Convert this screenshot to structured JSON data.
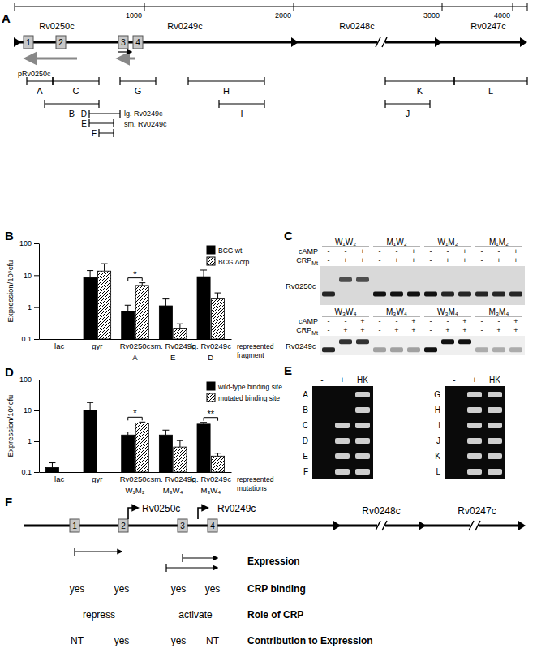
{
  "diagram_a": {
    "label": "A",
    "ruler_ticks": [
      1000,
      2000,
      3000,
      4000
    ],
    "genes": [
      "Rv0250c",
      "Rv0249c",
      "Rv0248c",
      "Rv0247c"
    ],
    "sites": [
      "1",
      "2",
      "3",
      "4"
    ],
    "plasmid": "pRv0250c",
    "fragments": [
      "A",
      "B",
      "C",
      "D",
      "E",
      "F",
      "G",
      "H",
      "I",
      "J",
      "K",
      "L"
    ],
    "fragment_names": [
      "lg. Rv0249c",
      "sm. Rv0249c"
    ]
  },
  "chart_data": [
    {
      "type": "bar",
      "label": "B",
      "y_label": "Expression/10⁶cfu",
      "categories": [
        "lac",
        "gyr",
        "Rv0250c",
        "sm. Rv0249c",
        "lg. Rv0249c"
      ],
      "annotation_labels": [
        null,
        null,
        "A",
        "E",
        "D"
      ],
      "annotation_title": "represented fragment",
      "series": [
        {
          "name": "BCG wt",
          "color": "#000000",
          "values": [
            null,
            8.5,
            0.75,
            1.1,
            9
          ],
          "errors": [
            null,
            5.5,
            0.4,
            0.7,
            5.5
          ]
        },
        {
          "name": "BCG Δcrp",
          "color": "#000000",
          "values": [
            null,
            13.5,
            4.8,
            0.22,
            1.8
          ],
          "errors": [
            null,
            9.5,
            1,
            0.08,
            1
          ]
        }
      ],
      "ylim": [
        0.1,
        100
      ],
      "yticks": [
        0.1,
        1,
        10,
        100
      ],
      "log": "y",
      "legend": "upper right",
      "significance": [
        {
          "category": 2,
          "label": "*"
        }
      ]
    },
    {
      "type": "bar",
      "label": "D",
      "y_label": "Expression/10⁶cfu",
      "categories": [
        "lac",
        "gyr",
        "Rv0250c",
        "sm. Rv0249c",
        "lg. Rv0249c"
      ],
      "annotation_labels": [
        null,
        null,
        "W₁M₂",
        "M₃W₄",
        "M₃W₄"
      ],
      "annotation_title": "represented mutations",
      "series": [
        {
          "name": "wild-type binding site",
          "color": "#000000",
          "values": [
            0.14,
            10,
            1.6,
            1.6,
            3.6
          ],
          "errors": [
            0.06,
            8,
            0.4,
            0.7,
            0.5
          ]
        },
        {
          "name": "mutated binding site",
          "color": "#000000",
          "values": [
            null,
            null,
            3.9,
            0.65,
            0.33
          ],
          "errors": [
            null,
            null,
            0.3,
            0.4,
            0.08
          ]
        }
      ],
      "ylim": [
        0.1,
        100
      ],
      "yticks": [
        0.1,
        1,
        10,
        100
      ],
      "log": "y",
      "legend": "upper right",
      "significance": [
        {
          "category": 2,
          "label": "*"
        },
        {
          "category": 4,
          "label": "**"
        }
      ]
    }
  ],
  "gel_c": {
    "label": "C",
    "gels": [
      {
        "name": "Rv0250c",
        "groups": [
          "W₁W₂",
          "M₁W₂",
          "W₁M₂",
          "M₁M₂"
        ]
      },
      {
        "name": "Rv0249c",
        "groups": [
          "W₃W₄",
          "M₃W₄",
          "W₃M₄",
          "M₃M₄"
        ]
      }
    ],
    "rows": [
      {
        "label": {
          "text": "cAMP"
        },
        "lanes": [
          "-",
          "-",
          "+"
        ]
      },
      {
        "label": {
          "text": "CRP",
          "sub": "Mt"
        },
        "lanes": [
          "-",
          "+",
          "+"
        ]
      }
    ]
  },
  "gel_e": {
    "label": "E",
    "columns": [
      "-",
      "+",
      "HK"
    ],
    "panels": [
      {
        "rows": [
          {
            "label": "A",
            "bands": [
              false,
              false,
              true
            ]
          },
          {
            "label": "B",
            "bands": [
              false,
              false,
              true
            ]
          },
          {
            "label": "C",
            "bands": [
              false,
              true,
              true
            ]
          },
          {
            "label": "D",
            "bands": [
              false,
              true,
              true
            ]
          },
          {
            "label": "E",
            "bands": [
              false,
              true,
              true
            ]
          },
          {
            "label": "F",
            "bands": [
              false,
              true,
              true
            ]
          }
        ]
      },
      {
        "rows": [
          {
            "label": "G",
            "bands": [
              false,
              true,
              true
            ]
          },
          {
            "label": "H",
            "bands": [
              false,
              true,
              true
            ]
          },
          {
            "label": "I",
            "bands": [
              false,
              true,
              true
            ]
          },
          {
            "label": "J",
            "bands": [
              false,
              true,
              true
            ]
          },
          {
            "label": "K",
            "bands": [
              false,
              true,
              true
            ]
          },
          {
            "label": "L",
            "bands": [
              false,
              true,
              true
            ]
          }
        ]
      }
    ]
  },
  "diagram_f": {
    "label": "F",
    "genes": [
      "Rv0250c",
      "Rv0249c",
      "Rv0248c",
      "Rv0247c"
    ],
    "sites": [
      "1",
      "2",
      "3",
      "4"
    ],
    "row_titles": [
      "Expression",
      "CRP binding",
      "Role of CRP",
      "Contribution to Expression"
    ],
    "crp_binding": [
      "yes",
      "yes",
      "yes",
      "yes"
    ],
    "role": [
      "repress",
      "activate"
    ],
    "contribution": [
      "NT",
      "yes",
      "yes",
      "NT"
    ]
  }
}
